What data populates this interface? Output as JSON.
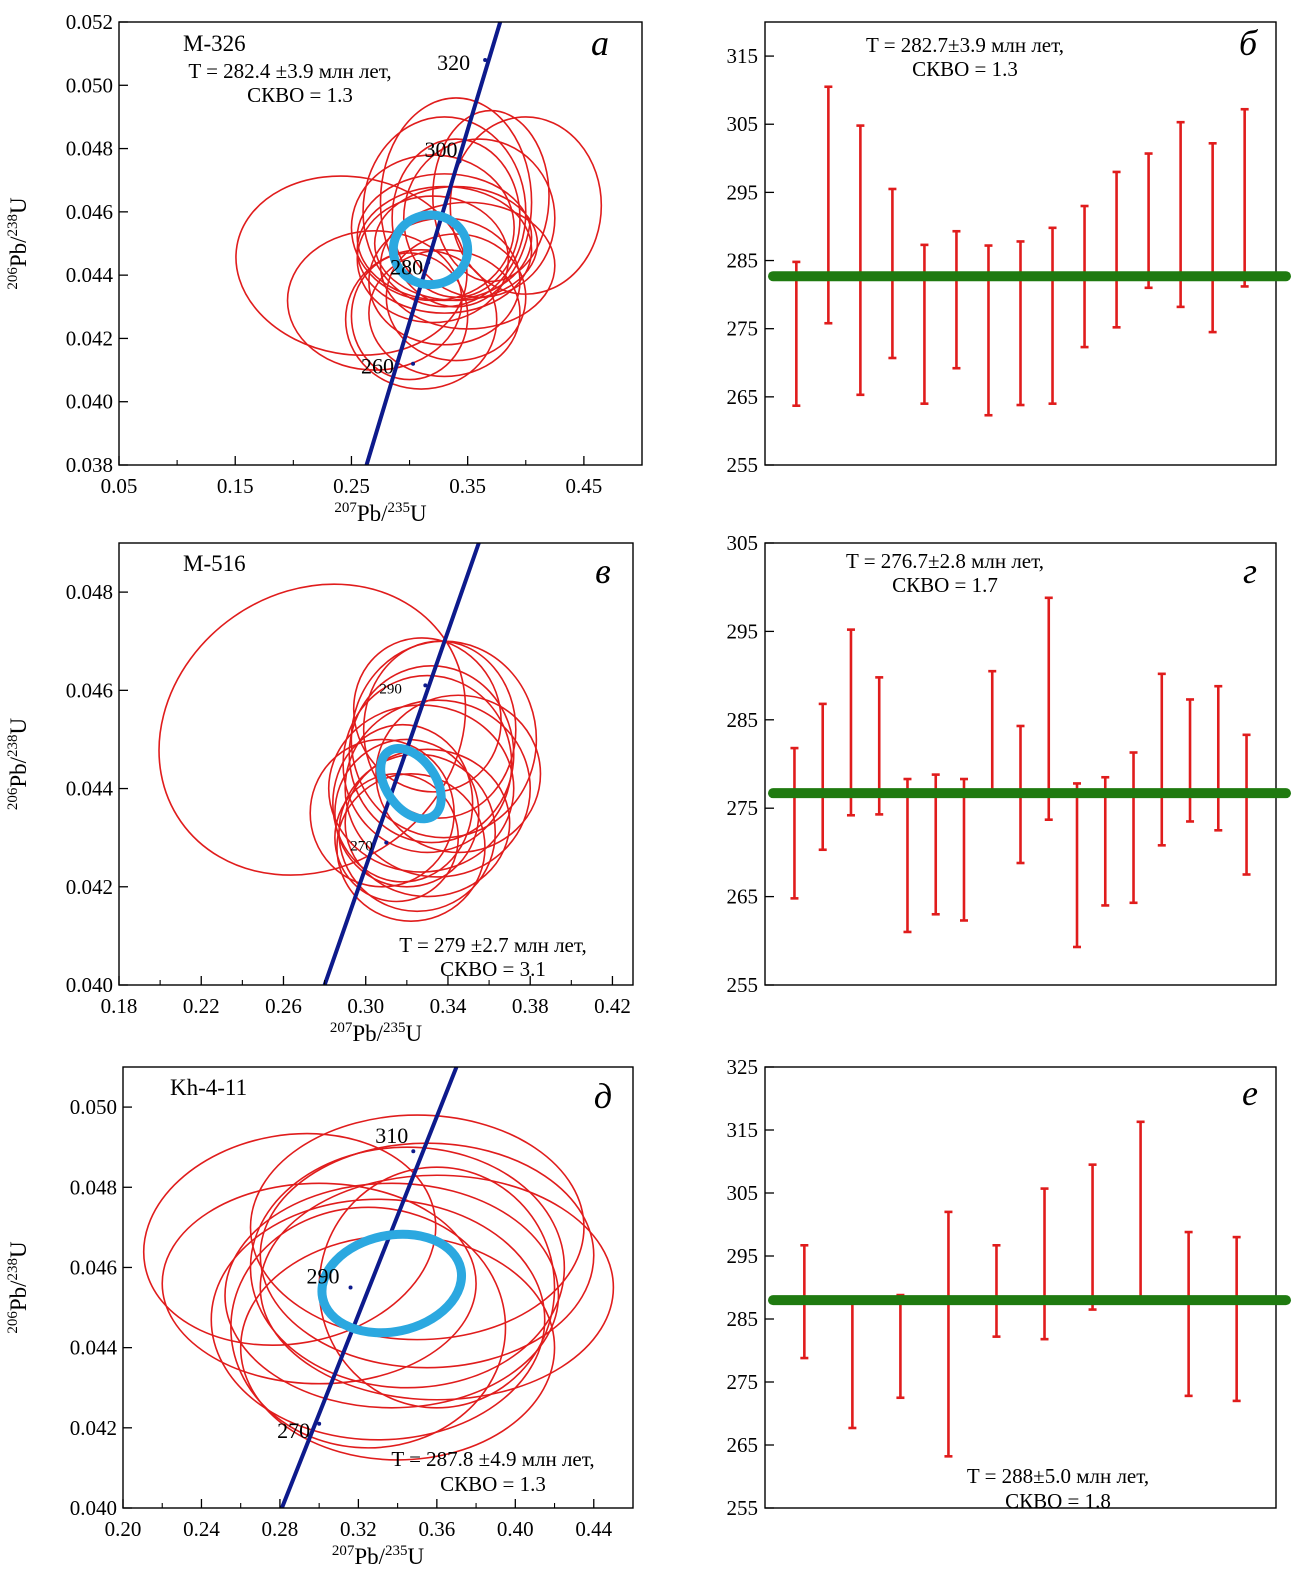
{
  "colors": {
    "ellipse": "#e01c1c",
    "concordia": "#0d1a8c",
    "mean_ellipse": "#2ba8e0",
    "error_bar": "#e01c1c",
    "mean_line": "#1f7a10",
    "axis": "#000000"
  },
  "concordia_axis_labels": {
    "x": {
      "sup": "207",
      "base1": "Pb/",
      "sup2": "235",
      "base2": "U"
    },
    "y": {
      "sup": "206",
      "base1": "Pb/",
      "sup2": "238",
      "base2": "U"
    }
  },
  "chart_data": [
    {
      "id": "a",
      "type": "scatter",
      "subtype": "concordia",
      "letter": "а",
      "sample": "M-326",
      "annotation_lines": [
        "T = 282.4 ±3.9 млн лет,",
        "СКВО = 1.3"
      ],
      "xlim": [
        0.05,
        0.5
      ],
      "ylim": [
        0.038,
        0.052
      ],
      "xticks": [
        "0.05",
        "0.15",
        "0.25",
        "0.35",
        "0.45"
      ],
      "yticks": [
        "0.038",
        "0.040",
        "0.042",
        "0.044",
        "0.046",
        "0.048",
        "0.050",
        "0.052"
      ],
      "concordia_age_labels": [
        "260",
        "280",
        "300",
        "320"
      ],
      "ellipses": [
        [
          0.25,
          0.0443,
          0.1,
          0.0028,
          10
        ],
        [
          0.4,
          0.0462,
          0.065,
          0.0028,
          0
        ],
        [
          0.34,
          0.0463,
          0.065,
          0.0033,
          0
        ],
        [
          0.37,
          0.0465,
          0.05,
          0.0027,
          0
        ],
        [
          0.33,
          0.046,
          0.07,
          0.003,
          0
        ],
        [
          0.36,
          0.0458,
          0.065,
          0.0025,
          0
        ],
        [
          0.34,
          0.0458,
          0.055,
          0.0025,
          0
        ],
        [
          0.32,
          0.0455,
          0.07,
          0.0023,
          0
        ],
        [
          0.33,
          0.0452,
          0.075,
          0.002,
          0
        ],
        [
          0.33,
          0.0448,
          0.075,
          0.002,
          0
        ],
        [
          0.34,
          0.045,
          0.07,
          0.0018,
          0
        ],
        [
          0.32,
          0.0445,
          0.065,
          0.002,
          0
        ],
        [
          0.35,
          0.0443,
          0.075,
          0.002,
          0
        ],
        [
          0.27,
          0.0432,
          0.075,
          0.0022,
          0
        ],
        [
          0.33,
          0.0438,
          0.065,
          0.002,
          0
        ],
        [
          0.34,
          0.0433,
          0.06,
          0.002,
          0
        ],
        [
          0.33,
          0.0428,
          0.065,
          0.002,
          0
        ],
        [
          0.31,
          0.0426,
          0.065,
          0.0022,
          0
        ],
        [
          0.3,
          0.0427,
          0.05,
          0.002,
          0
        ]
      ],
      "mean_ellipse": [
        0.318,
        0.0448,
        0.032,
        0.0011,
        0
      ],
      "concordia_line": [
        [
          0.263,
          0.038
        ],
        [
          0.378,
          0.052
        ]
      ],
      "concordia_ticks": [
        [
          0.303,
          0.0412,
          "260"
        ],
        [
          0.316,
          0.0444,
          "280"
        ],
        [
          0.343,
          0.0476,
          "300"
        ],
        [
          0.365,
          0.0508,
          "320"
        ]
      ]
    },
    {
      "id": "b",
      "type": "bar",
      "subtype": "weighted-mean-age",
      "letter": "б",
      "annotation_lines": [
        "T = 282.7±3.9 млн лет,",
        "СКВО = 1.3"
      ],
      "ylim": [
        255,
        320
      ],
      "yticks": [
        "255",
        "265",
        "275",
        "285",
        "295",
        "305",
        "315"
      ],
      "mean": 282.7,
      "bars": [
        [
          263.7,
          284.8
        ],
        [
          275.8,
          310.5
        ],
        [
          265.3,
          304.8
        ],
        [
          270.7,
          295.5
        ],
        [
          264.0,
          287.3
        ],
        [
          269.2,
          289.3
        ],
        [
          262.3,
          287.2
        ],
        [
          263.8,
          287.8
        ],
        [
          264.0,
          289.8
        ],
        [
          272.3,
          293.0
        ],
        [
          275.2,
          298.0
        ],
        [
          281.0,
          300.7
        ],
        [
          278.2,
          305.3
        ],
        [
          274.5,
          302.2
        ],
        [
          281.2,
          307.2
        ]
      ]
    },
    {
      "id": "c",
      "type": "scatter",
      "subtype": "concordia",
      "letter": "в",
      "sample": "M-516",
      "annotation_lines": [
        "T = 279 ±2.7 млн лет,",
        "СКВО = 3.1"
      ],
      "xlim": [
        0.18,
        0.43
      ],
      "ylim": [
        0.04,
        0.049
      ],
      "xticks": [
        "0.18",
        "0.22",
        "0.26",
        "0.30",
        "0.34",
        "0.38",
        "0.42"
      ],
      "yticks": [
        "0.040",
        "0.042",
        "0.044",
        "0.046",
        "0.048"
      ],
      "concordia_age_labels": [
        "270",
        "290"
      ],
      "ellipses": [
        [
          0.274,
          0.0452,
          0.078,
          0.0028,
          -35
        ],
        [
          0.33,
          0.0455,
          0.035,
          0.0016,
          -30
        ],
        [
          0.338,
          0.045,
          0.045,
          0.002,
          0
        ],
        [
          0.336,
          0.0452,
          0.037,
          0.0018,
          0
        ],
        [
          0.332,
          0.0447,
          0.04,
          0.0018,
          0
        ],
        [
          0.33,
          0.0445,
          0.041,
          0.0018,
          0
        ],
        [
          0.345,
          0.0443,
          0.04,
          0.0016,
          0
        ],
        [
          0.335,
          0.044,
          0.045,
          0.0018,
          0
        ],
        [
          0.327,
          0.044,
          0.045,
          0.0017,
          0
        ],
        [
          0.32,
          0.0435,
          0.035,
          0.0015,
          0
        ],
        [
          0.325,
          0.0431,
          0.038,
          0.0016,
          0
        ],
        [
          0.322,
          0.0428,
          0.036,
          0.0015,
          0
        ],
        [
          0.308,
          0.0435,
          0.035,
          0.0015,
          0
        ],
        [
          0.33,
          0.0433,
          0.04,
          0.0015,
          0
        ],
        [
          0.318,
          0.0437,
          0.034,
          0.0016,
          0
        ],
        [
          0.315,
          0.043,
          0.03,
          0.0013,
          0
        ]
      ],
      "mean_ellipse": [
        0.322,
        0.0441,
        0.012,
        0.0008,
        -35
      ],
      "concordia_line": [
        [
          0.28,
          0.04
        ],
        [
          0.355,
          0.049
        ]
      ],
      "concordia_ticks": [
        [
          0.31,
          0.0429,
          "270"
        ],
        [
          0.329,
          0.0461,
          "290"
        ]
      ]
    },
    {
      "id": "d",
      "type": "bar",
      "subtype": "weighted-mean-age",
      "letter": "г",
      "annotation_lines": [
        "T = 276.7±2.8 млн лет,",
        "СКВО = 1.7"
      ],
      "ylim": [
        255,
        305
      ],
      "yticks": [
        "255",
        "265",
        "275",
        "285",
        "295",
        "305"
      ],
      "mean": 276.7,
      "bars": [
        [
          264.8,
          281.8
        ],
        [
          270.3,
          286.8
        ],
        [
          274.2,
          295.2
        ],
        [
          274.3,
          289.8
        ],
        [
          261.0,
          278.3
        ],
        [
          263.0,
          278.8
        ],
        [
          262.3,
          278.3
        ],
        [
          277.0,
          290.5
        ],
        [
          268.8,
          284.3
        ],
        [
          273.7,
          298.8
        ],
        [
          259.3,
          277.8
        ],
        [
          264.0,
          278.5
        ],
        [
          264.3,
          281.3
        ],
        [
          270.8,
          290.2
        ],
        [
          273.5,
          287.3
        ],
        [
          272.5,
          288.8
        ],
        [
          267.5,
          283.3
        ]
      ]
    },
    {
      "id": "e",
      "type": "scatter",
      "subtype": "concordia",
      "letter": "д",
      "sample": "Kh-4-11",
      "annotation_lines": [
        "T = 287.8 ±4.9 млн лет,",
        "СКВО = 1.3"
      ],
      "xlim": [
        0.2,
        0.46
      ],
      "ylim": [
        0.04,
        0.051
      ],
      "xticks": [
        "0.20",
        "0.24",
        "0.28",
        "0.32",
        "0.36",
        "0.40",
        "0.44"
      ],
      "yticks": [
        "0.040",
        "0.042",
        "0.044",
        "0.046",
        "0.048",
        "0.050"
      ],
      "concordia_age_labels": [
        "270",
        "290",
        "310"
      ],
      "ellipses": [
        [
          0.285,
          0.0467,
          0.075,
          0.0026,
          -10
        ],
        [
          0.35,
          0.047,
          0.085,
          0.0028,
          0
        ],
        [
          0.355,
          0.0463,
          0.085,
          0.0028,
          0
        ],
        [
          0.36,
          0.0455,
          0.09,
          0.0028,
          0
        ],
        [
          0.345,
          0.046,
          0.08,
          0.003,
          0
        ],
        [
          0.337,
          0.0453,
          0.085,
          0.0028,
          0
        ],
        [
          0.33,
          0.0447,
          0.085,
          0.003,
          0
        ],
        [
          0.36,
          0.0455,
          0.06,
          0.003,
          0
        ],
        [
          0.34,
          0.044,
          0.08,
          0.0028,
          0
        ],
        [
          0.325,
          0.0445,
          0.07,
          0.003,
          0
        ],
        [
          0.3,
          0.0456,
          0.08,
          0.0025,
          0
        ]
      ],
      "mean_ellipse": [
        0.337,
        0.0456,
        0.036,
        0.0012,
        -12
      ],
      "concordia_line": [
        [
          0.281,
          0.04
        ],
        [
          0.37,
          0.051
        ]
      ],
      "concordia_ticks": [
        [
          0.3,
          0.0421,
          "270"
        ],
        [
          0.316,
          0.0455,
          "290"
        ],
        [
          0.348,
          0.0489,
          "310"
        ]
      ]
    },
    {
      "id": "f",
      "type": "bar",
      "subtype": "weighted-mean-age",
      "letter": "е",
      "annotation_lines": [
        "T = 288±5.0 млн лет,",
        "СКВО = 1.8"
      ],
      "ylim": [
        255,
        325
      ],
      "yticks": [
        "255",
        "265",
        "275",
        "285",
        "295",
        "305",
        "315",
        "325"
      ],
      "mean": 288,
      "bars": [
        [
          278.8,
          296.7
        ],
        [
          267.7,
          287.8
        ],
        [
          272.5,
          288.8
        ],
        [
          263.2,
          302.0
        ],
        [
          282.2,
          296.7
        ],
        [
          281.8,
          305.7
        ],
        [
          286.5,
          309.5
        ],
        [
          288.3,
          316.3
        ],
        [
          272.8,
          298.8
        ],
        [
          272.0,
          298.0
        ]
      ]
    }
  ]
}
